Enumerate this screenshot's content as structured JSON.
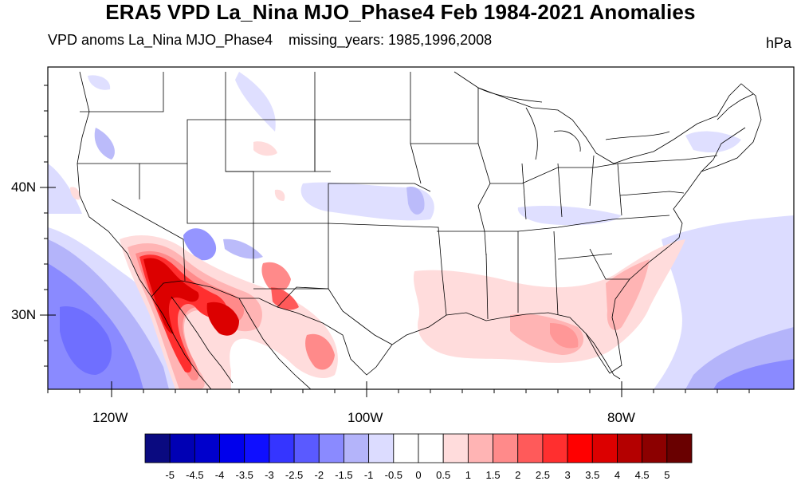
{
  "header": {
    "title": "ERA5 VPD La_Nina MJO_Phase4 Feb 1984-2021 Anomalies",
    "subtitle_left": "VPD anoms La_Nina MJO_Phase4",
    "subtitle_mid": "missing_years: 1985,1996,2008",
    "units": "hPa"
  },
  "axes": {
    "lat_labels": [
      {
        "id": "lat-40n",
        "text": "40N"
      },
      {
        "id": "lat-30n",
        "text": "30N"
      }
    ],
    "lon_labels": [
      {
        "id": "lon-120w",
        "text": "120W"
      },
      {
        "id": "lon-100w",
        "text": "100W"
      },
      {
        "id": "lon-80w",
        "text": "80W"
      }
    ]
  },
  "colorbar": {
    "labels": [
      "-5",
      "-4.5",
      "-4",
      "-3.5",
      "-3",
      "-2.5",
      "-2",
      "-1.5",
      "-1",
      "-0.5",
      "0",
      "0.5",
      "1",
      "1.5",
      "2",
      "2.5",
      "3",
      "3.5",
      "4",
      "4.5",
      "5"
    ],
    "colors": [
      "#0a0a80",
      "#0000b4",
      "#0000cc",
      "#0000ec",
      "#0f0fff",
      "#3535ff",
      "#5a5aff",
      "#8a8aff",
      "#b4b4fa",
      "#dcdcff",
      "#ffffff",
      "#ffffff",
      "#ffdcdc",
      "#ffb4b4",
      "#ff8a8a",
      "#ff5a5a",
      "#ff2f2f",
      "#ff0000",
      "#dc0000",
      "#b40000",
      "#8c0000",
      "#690000"
    ]
  }
}
